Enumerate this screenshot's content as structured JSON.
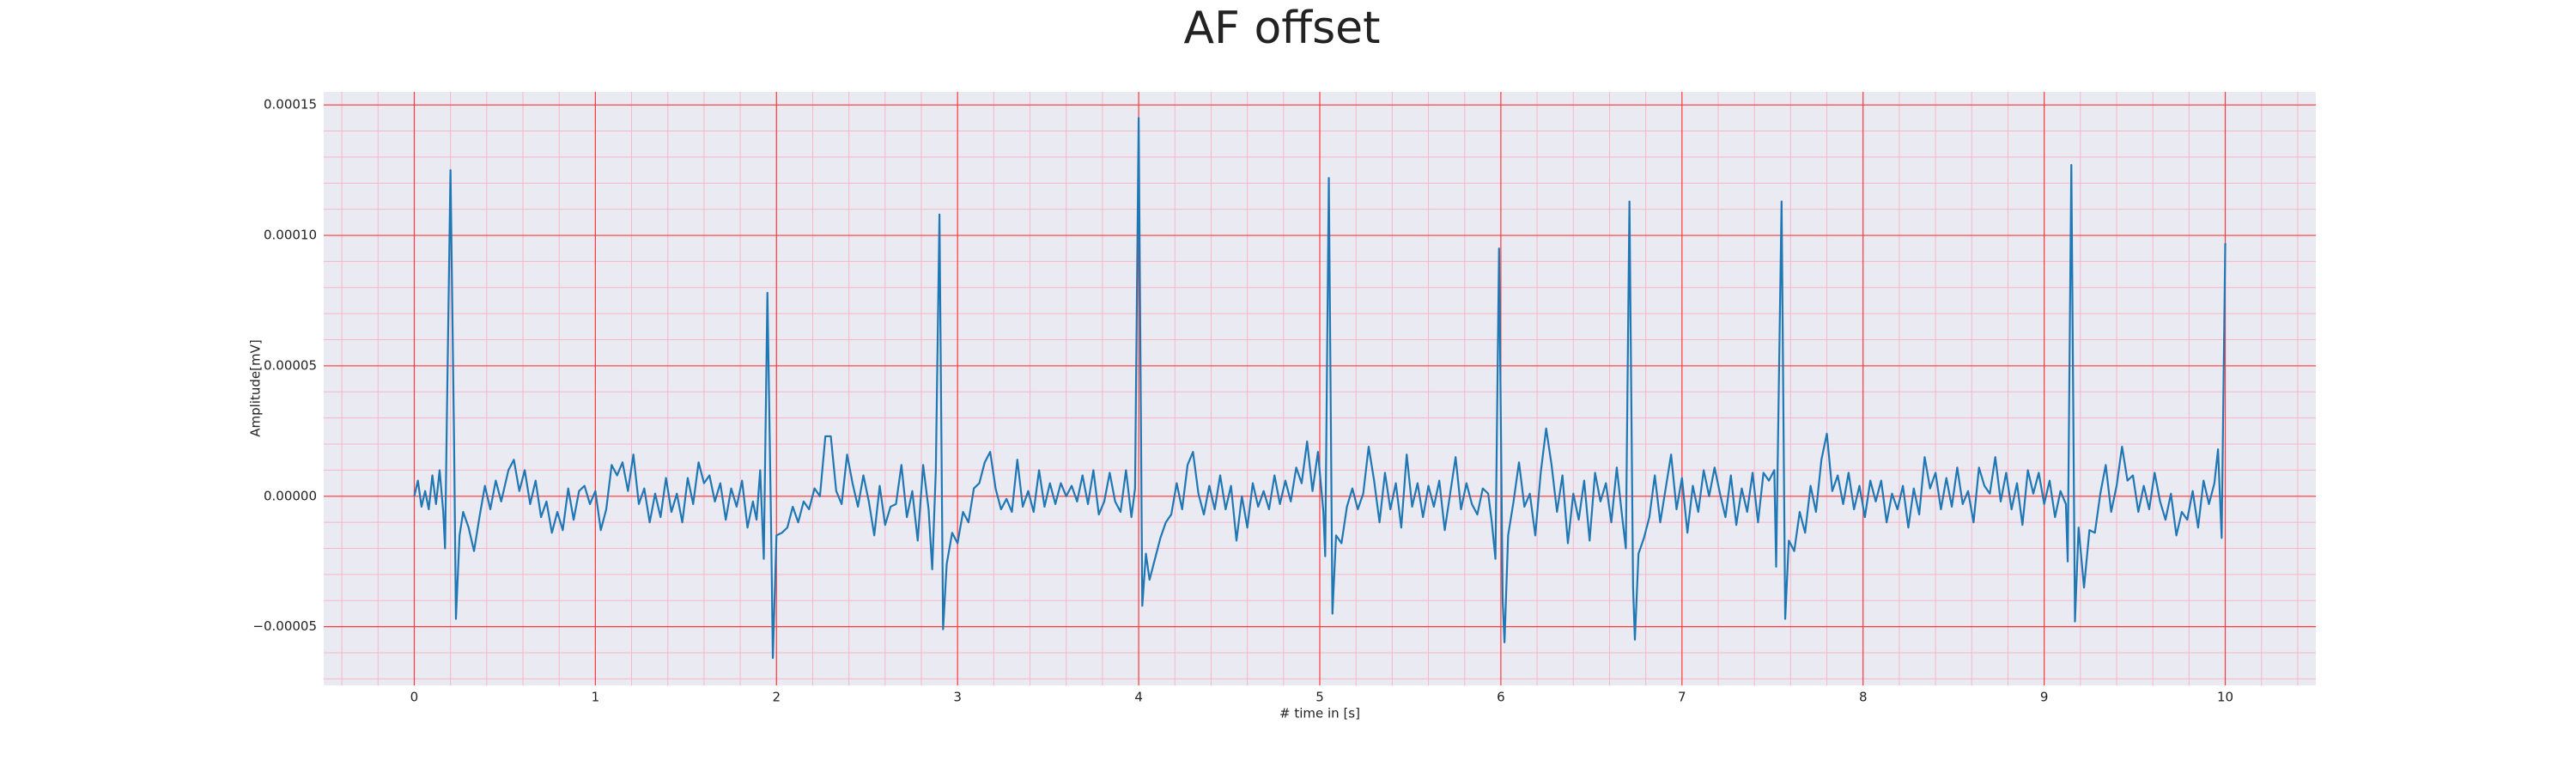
{
  "chart_data": {
    "type": "line",
    "title": "AF offset",
    "xlabel": "# time in [s]",
    "ylabel": "Amplitude[mV]",
    "color": "#1f77b4",
    "grid": true,
    "grid_color": "#ff3b3b",
    "minor_grid": true,
    "minor_grid_color": "#f7b6c6",
    "xlim": [
      -0.5,
      10.5
    ],
    "ylim": [
      -7.25e-05,
      0.000155
    ],
    "xticks": [
      0,
      1,
      2,
      3,
      4,
      5,
      6,
      7,
      8,
      9,
      10
    ],
    "yticks": [
      {
        "value": -5e-05,
        "label": "−0.00005"
      },
      {
        "value": 0,
        "label": "0.00000"
      },
      {
        "value": 5e-05,
        "label": "0.00005"
      },
      {
        "value": 0.0001,
        "label": "0.00010"
      },
      {
        "value": 0.00015,
        "label": "0.00015"
      }
    ],
    "x": [
      0,
      0.02,
      0.04,
      0.06,
      0.08,
      0.1,
      0.12,
      0.14,
      0.16,
      0.17,
      0.18,
      0.2,
      0.22,
      0.23,
      0.25,
      0.27,
      0.3,
      0.33,
      0.36,
      0.39,
      0.42,
      0.45,
      0.48,
      0.52,
      0.55,
      0.58,
      0.61,
      0.64,
      0.67,
      0.7,
      0.73,
      0.76,
      0.79,
      0.82,
      0.85,
      0.88,
      0.91,
      0.94,
      0.97,
      1,
      1.03,
      1.06,
      1.09,
      1.12,
      1.15,
      1.18,
      1.21,
      1.24,
      1.27,
      1.3,
      1.33,
      1.36,
      1.39,
      1.42,
      1.45,
      1.48,
      1.51,
      1.54,
      1.57,
      1.6,
      1.63,
      1.66,
      1.69,
      1.72,
      1.75,
      1.78,
      1.81,
      1.84,
      1.87,
      1.89,
      1.91,
      1.93,
      1.95,
      1.97,
      1.98,
      2,
      2.03,
      2.06,
      2.09,
      2.12,
      2.15,
      2.18,
      2.21,
      2.24,
      2.27,
      2.3,
      2.33,
      2.36,
      2.39,
      2.42,
      2.45,
      2.48,
      2.51,
      2.54,
      2.57,
      2.6,
      2.63,
      2.66,
      2.69,
      2.72,
      2.75,
      2.78,
      2.81,
      2.84,
      2.86,
      2.88,
      2.9,
      2.92,
      2.94,
      2.97,
      3,
      3.03,
      3.06,
      3.09,
      3.12,
      3.15,
      3.18,
      3.21,
      3.24,
      3.27,
      3.3,
      3.33,
      3.36,
      3.39,
      3.42,
      3.45,
      3.48,
      3.51,
      3.54,
      3.57,
      3.6,
      3.63,
      3.66,
      3.69,
      3.72,
      3.75,
      3.78,
      3.81,
      3.84,
      3.87,
      3.9,
      3.93,
      3.96,
      3.98,
      4,
      4.02,
      4.04,
      4.06,
      4.09,
      4.12,
      4.15,
      4.18,
      4.21,
      4.24,
      4.27,
      4.3,
      4.33,
      4.36,
      4.39,
      4.42,
      4.45,
      4.48,
      4.51,
      4.54,
      4.57,
      4.6,
      4.63,
      4.66,
      4.69,
      4.72,
      4.75,
      4.78,
      4.81,
      4.84,
      4.87,
      4.9,
      4.93,
      4.96,
      4.99,
      5.02,
      5.03,
      5.05,
      5.07,
      5.09,
      5.12,
      5.15,
      5.18,
      5.21,
      5.24,
      5.27,
      5.3,
      5.33,
      5.36,
      5.39,
      5.42,
      5.45,
      5.48,
      5.51,
      5.54,
      5.57,
      5.6,
      5.63,
      5.66,
      5.69,
      5.72,
      5.75,
      5.78,
      5.81,
      5.84,
      5.87,
      5.9,
      5.93,
      5.95,
      5.97,
      5.99,
      6.01,
      6.02,
      6.04,
      6.07,
      6.1,
      6.13,
      6.16,
      6.19,
      6.22,
      6.25,
      6.28,
      6.31,
      6.34,
      6.37,
      6.4,
      6.43,
      6.46,
      6.49,
      6.52,
      6.55,
      6.58,
      6.61,
      6.64,
      6.67,
      6.69,
      6.71,
      6.73,
      6.74,
      6.76,
      6.79,
      6.82,
      6.85,
      6.88,
      6.91,
      6.94,
      6.97,
      7,
      7.03,
      7.06,
      7.09,
      7.12,
      7.15,
      7.18,
      7.21,
      7.24,
      7.27,
      7.3,
      7.33,
      7.36,
      7.39,
      7.42,
      7.45,
      7.48,
      7.51,
      7.52,
      7.55,
      7.57,
      7.59,
      7.62,
      7.65,
      7.68,
      7.71,
      7.74,
      7.77,
      7.8,
      7.83,
      7.86,
      7.89,
      7.92,
      7.95,
      7.98,
      8.01,
      8.04,
      8.07,
      8.1,
      8.13,
      8.16,
      8.19,
      8.22,
      8.25,
      8.28,
      8.31,
      8.34,
      8.37,
      8.4,
      8.43,
      8.46,
      8.49,
      8.52,
      8.55,
      8.58,
      8.61,
      8.64,
      8.67,
      8.7,
      8.73,
      8.76,
      8.79,
      8.82,
      8.85,
      8.88,
      8.91,
      8.94,
      8.97,
      9,
      9.03,
      9.06,
      9.09,
      9.12,
      9.13,
      9.15,
      9.17,
      9.19,
      9.22,
      9.25,
      9.28,
      9.31,
      9.34,
      9.37,
      9.4,
      9.43,
      9.46,
      9.49,
      9.52,
      9.55,
      9.58,
      9.61,
      9.64,
      9.67,
      9.7,
      9.73,
      9.76,
      9.79,
      9.82,
      9.85,
      9.88,
      9.91,
      9.94,
      9.96,
      9.98,
      10
    ],
    "values": [
      0,
      6e-06,
      -4e-06,
      2e-06,
      -5e-06,
      8e-06,
      -3e-06,
      1e-05,
      -6e-06,
      -2e-05,
      3e-05,
      0.000125,
      2e-05,
      -4.7e-05,
      -1.5e-05,
      -6e-06,
      -1.2e-05,
      -2.1e-05,
      -8e-06,
      4e-06,
      -5e-06,
      6e-06,
      -2e-06,
      1e-05,
      1.4e-05,
      2e-06,
      1e-05,
      -3e-06,
      6e-06,
      -8e-06,
      -2e-06,
      -1.4e-05,
      -6e-06,
      -1.3e-05,
      3e-06,
      -9e-06,
      2e-06,
      4e-06,
      -3e-06,
      2e-06,
      -1.3e-05,
      -5e-06,
      1.2e-05,
      8e-06,
      1.3e-05,
      2e-06,
      1.6e-05,
      -3e-06,
      3e-06,
      -1e-05,
      1e-06,
      -8e-06,
      7e-06,
      -6e-06,
      1e-06,
      -1e-05,
      7e-06,
      -3e-06,
      1.3e-05,
      5e-06,
      8e-06,
      -2e-06,
      5e-06,
      -9e-06,
      3e-06,
      -4e-06,
      6e-06,
      -1.2e-05,
      -2e-06,
      -9e-06,
      1e-05,
      -2.4e-05,
      7.8e-05,
      -1e-05,
      -6.2e-05,
      -1.5e-05,
      -1.4e-05,
      -1.2e-05,
      -4e-06,
      -1e-05,
      -2e-06,
      -5e-06,
      3e-06,
      0,
      2.3e-05,
      2.3e-05,
      2e-06,
      -3e-06,
      1.6e-05,
      5e-06,
      -4e-06,
      8e-06,
      -2e-06,
      -1.5e-05,
      4e-06,
      -1.1e-05,
      -4e-06,
      -3e-06,
      1.2e-05,
      -8e-06,
      2e-06,
      -1.7e-05,
      1.2e-05,
      -5e-06,
      -2.8e-05,
      1e-05,
      0.000108,
      -5.1e-05,
      -2.6e-05,
      -1.4e-05,
      -1.8e-05,
      -6e-06,
      -1e-05,
      3e-06,
      5e-06,
      1.3e-05,
      1.7e-05,
      3e-06,
      -5e-06,
      -1e-06,
      -6e-06,
      1.4e-05,
      -4e-06,
      2e-06,
      -6e-06,
      1e-05,
      -4e-06,
      5e-06,
      -3e-06,
      5e-06,
      0,
      4e-06,
      -2e-06,
      8e-06,
      -3e-06,
      1e-05,
      -7e-06,
      -2e-06,
      9e-06,
      -2e-06,
      -6e-06,
      1e-05,
      -8e-06,
      3e-06,
      0.000145,
      -4.2e-05,
      -2.2e-05,
      -3.2e-05,
      -2.4e-05,
      -1.6e-05,
      -1e-05,
      -7e-06,
      5e-06,
      -5e-06,
      1.2e-05,
      1.7e-05,
      1e-06,
      -7e-06,
      4e-06,
      -5e-06,
      8e-06,
      -5e-06,
      4e-06,
      -1.7e-05,
      0,
      -1.2e-05,
      5e-06,
      -4e-06,
      2e-06,
      -5e-06,
      8e-06,
      -3e-06,
      6e-06,
      -2e-06,
      1.1e-05,
      5e-06,
      2.1e-05,
      2e-06,
      1.7e-05,
      -6e-06,
      -2.3e-05,
      0.000122,
      -4.5e-05,
      -1.5e-05,
      -1.8e-05,
      -4e-06,
      3e-06,
      -5e-06,
      1e-06,
      1.9e-05,
      6e-06,
      -1e-05,
      9e-06,
      -5e-06,
      5e-06,
      -1.2e-05,
      1.6e-05,
      -4e-06,
      5e-06,
      -8e-06,
      4e-06,
      -4e-06,
      6e-06,
      -1.3e-05,
      1e-06,
      1.5e-05,
      -5e-06,
      5e-06,
      -3e-06,
      -7e-06,
      3e-06,
      1e-06,
      -1e-05,
      -2.4e-05,
      9.5e-05,
      -4e-05,
      -5.6e-05,
      -1.5e-05,
      -2e-06,
      1.3e-05,
      -4e-06,
      1e-06,
      -1.5e-05,
      9e-06,
      2.6e-05,
      1.2e-05,
      -6e-06,
      8e-06,
      -1.8e-05,
      1e-06,
      -9e-06,
      6e-06,
      -1.7e-05,
      9e-06,
      -2e-06,
      5e-06,
      -1e-05,
      1.1e-05,
      -8e-06,
      -2e-05,
      0.000113,
      -3.5e-05,
      -5.5e-05,
      -2.2e-05,
      -1.6e-05,
      -8e-06,
      8e-06,
      -1e-05,
      3e-06,
      1.6e-05,
      -5e-06,
      7e-06,
      -1.4e-05,
      4e-06,
      -6e-06,
      1e-05,
      0,
      1.1e-05,
      1e-06,
      -8e-06,
      8e-06,
      -1.1e-05,
      3e-06,
      -6e-06,
      9e-06,
      -1e-05,
      9e-06,
      6e-06,
      1e-05,
      -2.7e-05,
      0.000113,
      -4.7e-05,
      -1.7e-05,
      -2.1e-05,
      -6e-06,
      -1.4e-05,
      4e-06,
      -6e-06,
      1.4e-05,
      2.4e-05,
      2e-06,
      8e-06,
      -3e-06,
      9e-06,
      -5e-06,
      4e-06,
      -8e-06,
      6e-06,
      -2e-06,
      6e-06,
      -1e-05,
      1e-06,
      -5e-06,
      4e-06,
      -1.2e-05,
      3e-06,
      -7e-06,
      1.5e-05,
      3e-06,
      9e-06,
      -5e-06,
      7e-06,
      -4e-06,
      1.1e-05,
      -3e-06,
      2e-06,
      -1e-05,
      1.1e-05,
      4e-06,
      1e-06,
      1.5e-05,
      -2e-06,
      9e-06,
      -5e-06,
      5e-06,
      -1.1e-05,
      1e-05,
      1e-06,
      9e-06,
      -3e-06,
      6e-06,
      -8e-06,
      2e-06,
      -3e-06,
      -2.5e-05,
      0.000127,
      -4.8e-05,
      -1.2e-05,
      -3.5e-05,
      -1.3e-05,
      -1.4e-05,
      1e-06,
      1.2e-05,
      -6e-06,
      4e-06,
      1.9e-05,
      6e-06,
      8e-06,
      -6e-06,
      4e-06,
      -5e-06,
      9e-06,
      -2e-06,
      -9e-06,
      1e-06,
      -1.5e-05,
      -6e-06,
      -9e-06,
      2e-06,
      -1.2e-05,
      6e-06,
      -3e-06,
      5e-06,
      1.8e-05,
      -1.6e-05,
      9.7e-05
    ]
  }
}
